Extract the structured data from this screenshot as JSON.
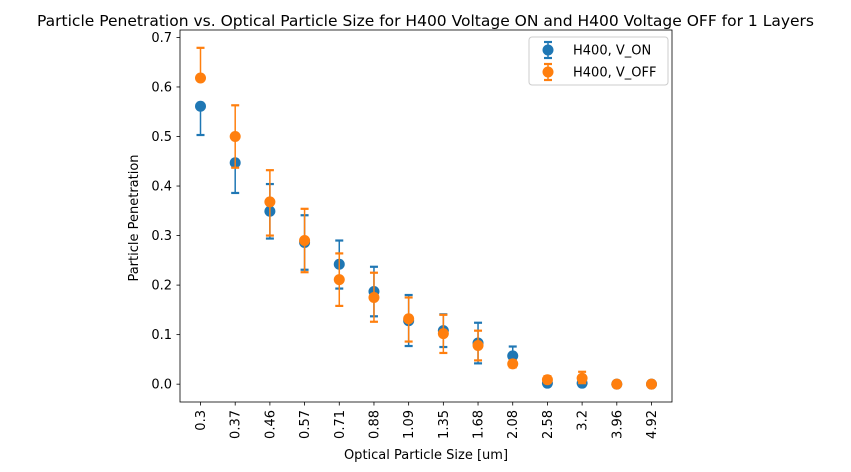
{
  "chart_data": {
    "type": "scatter",
    "title": "Particle Penetration vs. Optical Particle Size for H400 Voltage ON and H400 Voltage OFF for 1 Layers",
    "xlabel": "Optical Particle Size [um]",
    "ylabel": "Particle Penetration",
    "categories": [
      "0.3",
      "0.37",
      "0.46",
      "0.57",
      "0.71",
      "0.88",
      "1.09",
      "1.35",
      "1.68",
      "2.08",
      "2.58",
      "3.2",
      "3.96",
      "4.92"
    ],
    "ylim": [
      -0.036,
      0.715
    ],
    "yticks": [
      "0.0",
      "0.1",
      "0.2",
      "0.3",
      "0.4",
      "0.5",
      "0.6",
      "0.7"
    ],
    "grid": false,
    "legend_position": "top-right",
    "series": [
      {
        "name": "H400, V_ON",
        "color": "#1f77b4",
        "values": [
          0.561,
          0.447,
          0.349,
          0.286,
          0.242,
          0.187,
          0.128,
          0.108,
          0.083,
          0.057,
          0.002,
          0.002,
          0.0,
          0.0
        ],
        "lower": [
          0.503,
          0.386,
          0.294,
          0.231,
          0.193,
          0.137,
          0.077,
          0.075,
          0.042,
          0.038,
          0.0,
          0.0,
          0.0,
          0.0
        ],
        "upper": [
          0.561,
          0.447,
          0.404,
          0.341,
          0.29,
          0.237,
          0.18,
          0.141,
          0.124,
          0.076,
          0.004,
          0.004,
          0.0,
          0.0
        ]
      },
      {
        "name": "H400, V_OFF",
        "color": "#ff7f0e",
        "values": [
          0.618,
          0.5,
          0.368,
          0.29,
          0.211,
          0.175,
          0.132,
          0.102,
          0.078,
          0.041,
          0.009,
          0.012,
          0.0,
          0.0
        ],
        "lower": [
          0.618,
          0.437,
          0.3,
          0.226,
          0.158,
          0.126,
          0.086,
          0.063,
          0.048,
          0.034,
          0.003,
          0.002,
          0.0,
          0.0
        ],
        "upper": [
          0.679,
          0.563,
          0.432,
          0.354,
          0.264,
          0.225,
          0.175,
          0.14,
          0.108,
          0.048,
          0.016,
          0.025,
          0.0,
          0.0
        ]
      }
    ]
  }
}
